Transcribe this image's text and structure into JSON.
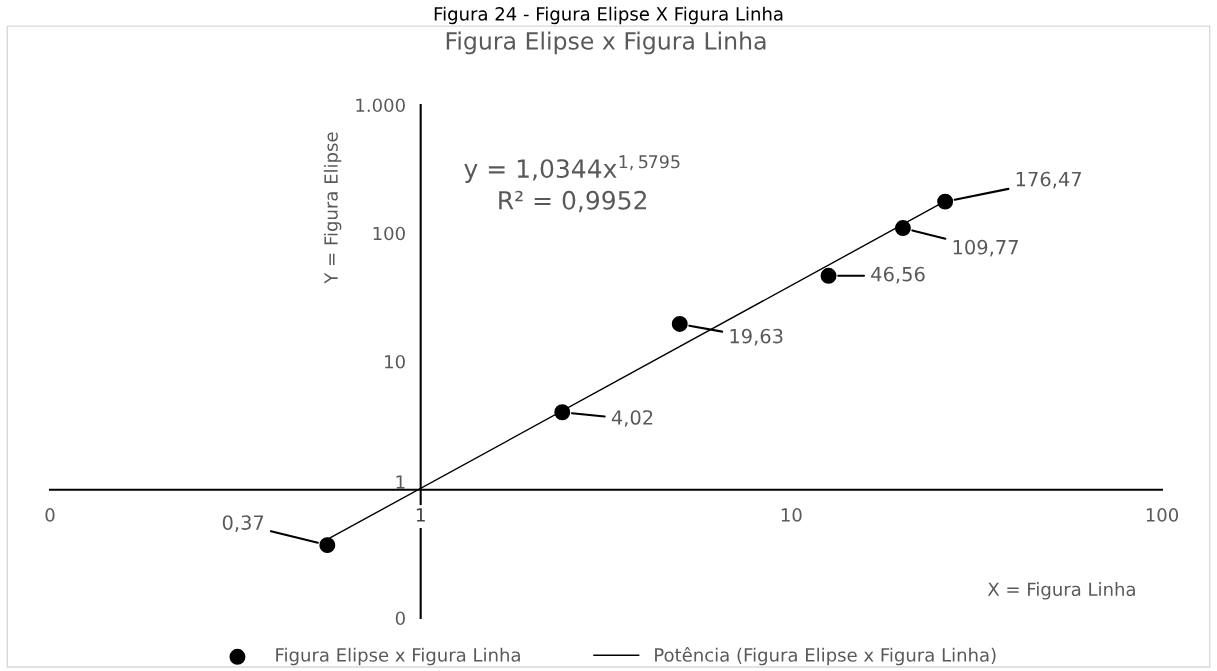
{
  "chart_data": {
    "type": "scatter",
    "title": "Figura Elipse x Figura Linha",
    "xlabel": "X = Figura Linha",
    "ylabel": "Y = Figura Elipse",
    "log": "xy",
    "xlim": [
      0.1,
      100
    ],
    "ylim": [
      0.1,
      1000
    ],
    "xticks": [
      {
        "value": 0.1,
        "label": "0"
      },
      1,
      10,
      100
    ],
    "yticks": [
      {
        "value": 0.1,
        "label": "0"
      },
      1,
      10,
      100,
      {
        "value": 1000,
        "label": "1.000"
      }
    ],
    "grid": false,
    "legend": "bottom",
    "marker": "circle",
    "series": [
      {
        "name": "Figura Elipse x Figura Linha",
        "type": "scatter",
        "color": "#000000",
        "x": [
          0.56,
          2.41,
          5.0,
          12.6,
          20.0,
          26.0
        ],
        "values": [
          0.37,
          4.02,
          19.63,
          46.56,
          109.77,
          176.47
        ],
        "value_labels": [
          "0,37",
          "4,02",
          "19,63",
          "46,56",
          "109,77",
          "176,47"
        ]
      },
      {
        "name": "Potência (Figura Elipse x Figura Linha)",
        "type": "line",
        "color": "#000000",
        "marker": "none",
        "line_style": "solid",
        "x": [
          0.56,
          26.0
        ],
        "values": [
          0.41,
          177.7
        ]
      }
    ],
    "annotations": [
      "Figura 24 - Figura Elipse X Figura Linha",
      "y = 1,0344x$^{1,5795}$",
      "R² = 0,9952"
    ]
  }
}
